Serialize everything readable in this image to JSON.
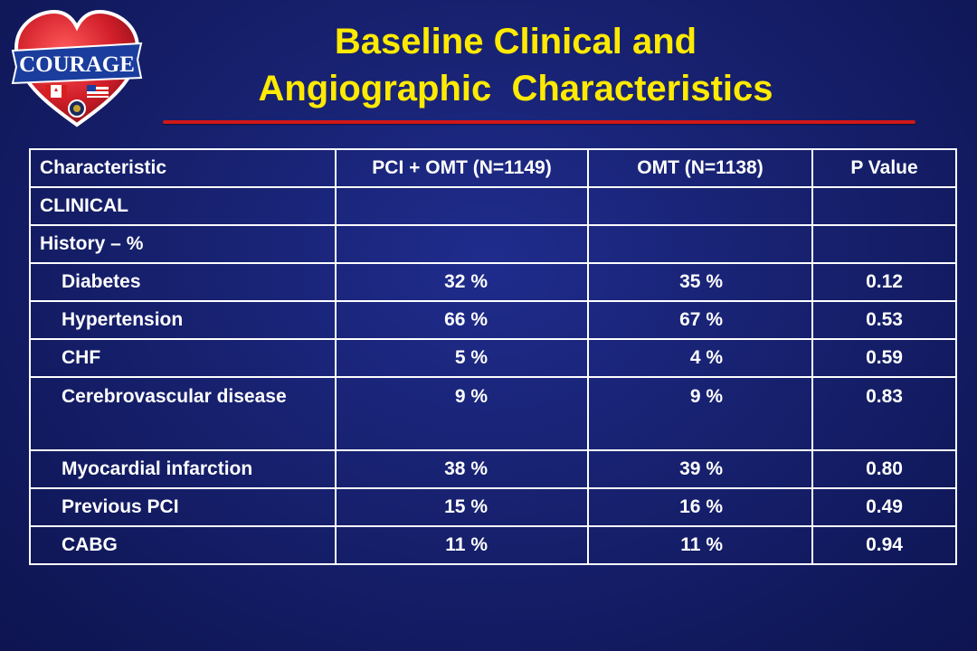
{
  "title": {
    "line1": "Baseline Clinical and",
    "line2": "Angiographic  Characteristics"
  },
  "logo": {
    "text": "COURAGE",
    "colors": {
      "heart": "#d11f2a",
      "banner": "#1a3d9e",
      "flag_red": "#d91e1e"
    }
  },
  "colors": {
    "title": "#ffea00",
    "rule": "#d01818",
    "background": "#17216f",
    "table_text": "#ffffff"
  },
  "table": {
    "headers": [
      "Characteristic",
      "PCI + OMT (N=1149)",
      "OMT (N=1138)",
      "P Value"
    ],
    "rows": [
      {
        "label": "CLINICAL",
        "pci": "",
        "omt": "",
        "p": ""
      },
      {
        "label": "History – %",
        "pci": "",
        "omt": "",
        "p": ""
      },
      {
        "label": "Diabetes",
        "pci": "32 %",
        "omt": "35 %",
        "p": "0.12"
      },
      {
        "label": "Hypertension",
        "pci": "66 %",
        "omt": "67 %",
        "p": "0.53"
      },
      {
        "label": "CHF",
        "pci": "5 %",
        "omt": "4 %",
        "p": "0.59"
      },
      {
        "label": "Cerebrovascular disease",
        "pci": "9 %",
        "omt": "9 %",
        "p": "0.83"
      },
      {
        "label": "Myocardial infarction",
        "pci": "38 %",
        "omt": "39 %",
        "p": "0.80"
      },
      {
        "label": "Previous PCI",
        "pci": "15 %",
        "omt": "16 %",
        "p": "0.49"
      },
      {
        "label": "CABG",
        "pci": "11 %",
        "omt": "11 %",
        "p": "0.94"
      }
    ]
  }
}
